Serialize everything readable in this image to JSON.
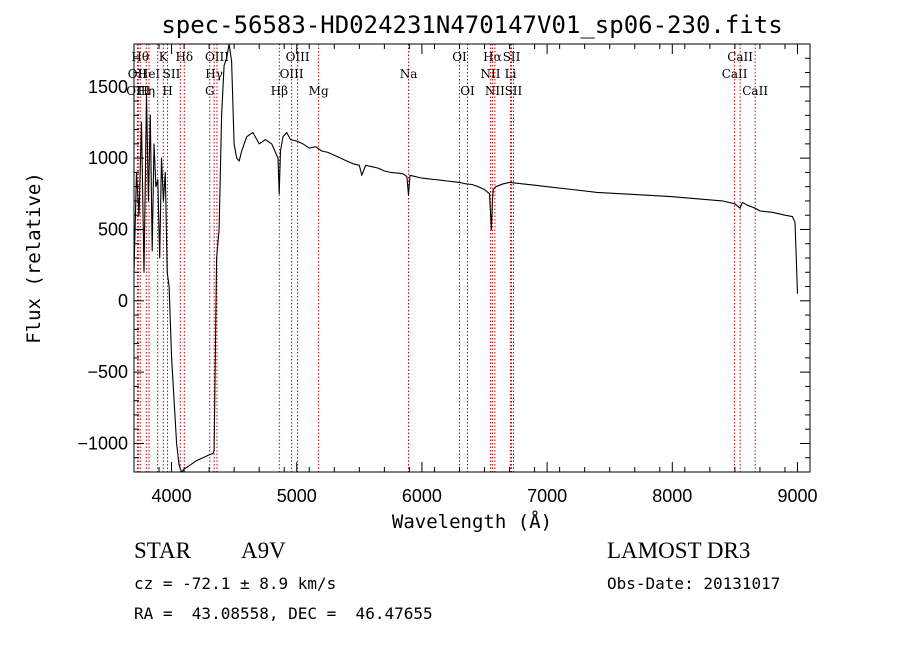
{
  "chart_data": {
    "type": "line",
    "title": "spec-56583-HD024231N470147V01_sp06-230.fits",
    "xlabel": "Wavelength (Å)",
    "ylabel": "Flux (relative)",
    "xlim": [
      3700,
      9100
    ],
    "ylim": [
      -1200,
      1800
    ],
    "x_ticks": [
      4000,
      5000,
      6000,
      7000,
      8000,
      9000
    ],
    "y_ticks": [
      -1000,
      -500,
      0,
      500,
      1000,
      1500
    ],
    "grid": false,
    "line_color": "#000000",
    "marker_color": "#cc0000",
    "series": [
      {
        "x": [
          3700,
          3720,
          3740,
          3760,
          3780,
          3800,
          3815,
          3830,
          3845,
          3860,
          3875,
          3890,
          3905,
          3920,
          3935,
          3950,
          3965,
          3980,
          4000,
          4020,
          4040,
          4060,
          4080,
          4100,
          4150,
          4200,
          4250,
          4300,
          4330,
          4340,
          4360,
          4380,
          4400,
          4420,
          4440,
          4460,
          4480,
          4500,
          4520,
          4540,
          4560,
          4600,
          4650,
          4700,
          4750,
          4800,
          4850,
          4860,
          4870,
          4890,
          4920,
          4950,
          5000,
          5050,
          5100,
          5150,
          5200,
          5250,
          5300,
          5350,
          5400,
          5450,
          5500,
          5520,
          5550,
          5600,
          5650,
          5700,
          5750,
          5800,
          5850,
          5880,
          5893,
          5905,
          5950,
          6000,
          6050,
          6100,
          6150,
          6200,
          6250,
          6300,
          6350,
          6400,
          6450,
          6500,
          6540,
          6555,
          6563,
          6570,
          6590,
          6650,
          6700,
          6800,
          6900,
          7000,
          7200,
          7400,
          7600,
          7800,
          8000,
          8200,
          8400,
          8500,
          8540,
          8560,
          8600,
          8660,
          8700,
          8800,
          8900,
          8960,
          8980,
          9000
        ],
        "y": [
          200,
          900,
          600,
          1250,
          200,
          1450,
          700,
          1300,
          350,
          1100,
          800,
          850,
          300,
          1000,
          700,
          900,
          200,
          100,
          -400,
          -700,
          -1000,
          -1150,
          -1200,
          -1180,
          -1150,
          -1120,
          -1100,
          -1080,
          -1070,
          -1050,
          300,
          500,
          1300,
          1650,
          1700,
          1800,
          1680,
          1100,
          1000,
          980,
          1050,
          1150,
          1180,
          1100,
          1130,
          1100,
          1000,
          750,
          1050,
          1150,
          1180,
          1130,
          1120,
          1100,
          1070,
          1080,
          1050,
          1040,
          1020,
          1000,
          980,
          960,
          950,
          880,
          950,
          940,
          930,
          910,
          900,
          895,
          890,
          870,
          740,
          880,
          870,
          860,
          855,
          850,
          845,
          840,
          835,
          830,
          820,
          815,
          800,
          780,
          750,
          500,
          700,
          780,
          800,
          820,
          830,
          820,
          810,
          800,
          780,
          760,
          750,
          740,
          730,
          715,
          700,
          680,
          650,
          690,
          670,
          650,
          630,
          620,
          600,
          590,
          550,
          50
        ]
      }
    ],
    "line_markers": [
      {
        "x": 3750,
        "label": "Hθ",
        "row": 0,
        "align": "middle"
      },
      {
        "x": 3727,
        "label": "OII",
        "row": 1,
        "align": "middle"
      },
      {
        "x": 3734,
        "label": "OIII",
        "row": 2,
        "align": "middle"
      },
      {
        "x": 3798,
        "label": "Hη",
        "row": 2,
        "align": "middle"
      },
      {
        "x": 3820,
        "label": "HeI",
        "row": 1,
        "align": "middle"
      },
      {
        "x": 3889,
        "label": "",
        "row": 0,
        "align": "middle"
      },
      {
        "x": 3934,
        "label": "K",
        "row": 0,
        "align": "middle"
      },
      {
        "x": 3968,
        "label": "H",
        "row": 2,
        "align": "middle"
      },
      {
        "x": 4070,
        "label": "SII",
        "row": 1,
        "align": "end"
      },
      {
        "x": 4102,
        "label": "Hδ",
        "row": 0,
        "align": "middle"
      },
      {
        "x": 4305,
        "label": "G",
        "row": 2,
        "align": "middle"
      },
      {
        "x": 4340,
        "label": "Hγ",
        "row": 1,
        "align": "middle"
      },
      {
        "x": 4363,
        "label": "OIII",
        "row": 0,
        "align": "middle"
      },
      {
        "x": 4861,
        "label": "Hβ",
        "row": 2,
        "align": "middle"
      },
      {
        "x": 4959,
        "label": "OIII",
        "row": 1,
        "align": "middle"
      },
      {
        "x": 5007,
        "label": "OIII",
        "row": 0,
        "align": "middle"
      },
      {
        "x": 5175,
        "label": "Mg",
        "row": 2,
        "align": "middle"
      },
      {
        "x": 5893,
        "label": "Na",
        "row": 1,
        "align": "middle"
      },
      {
        "x": 6300,
        "label": "OI",
        "row": 0,
        "align": "middle"
      },
      {
        "x": 6364,
        "label": "OI",
        "row": 2,
        "align": "middle"
      },
      {
        "x": 6548,
        "label": "NII",
        "row": 1,
        "align": "middle"
      },
      {
        "x": 6563,
        "label": "Hα",
        "row": 0,
        "align": "middle"
      },
      {
        "x": 6583,
        "label": "NII",
        "row": 2,
        "align": "middle"
      },
      {
        "x": 6708,
        "label": "Li",
        "row": 1,
        "align": "middle"
      },
      {
        "x": 6716,
        "label": "SII",
        "row": 0,
        "align": "middle"
      },
      {
        "x": 6731,
        "label": "SII",
        "row": 2,
        "align": "middle"
      },
      {
        "x": 8498,
        "label": "CaII",
        "row": 1,
        "align": "middle"
      },
      {
        "x": 8542,
        "label": "CaII",
        "row": 0,
        "align": "middle"
      },
      {
        "x": 8662,
        "label": "CaII",
        "row": 2,
        "align": "middle"
      }
    ]
  },
  "info": {
    "object_class": "STAR",
    "subclass": "A9V",
    "survey": "LAMOST DR3",
    "redshift_text": "cz = -72.1 ± 8.9 km/s",
    "obs_date_text": "Obs-Date: 20131017",
    "coords_text": "RA =  43.08558, DEC =  46.47655"
  }
}
